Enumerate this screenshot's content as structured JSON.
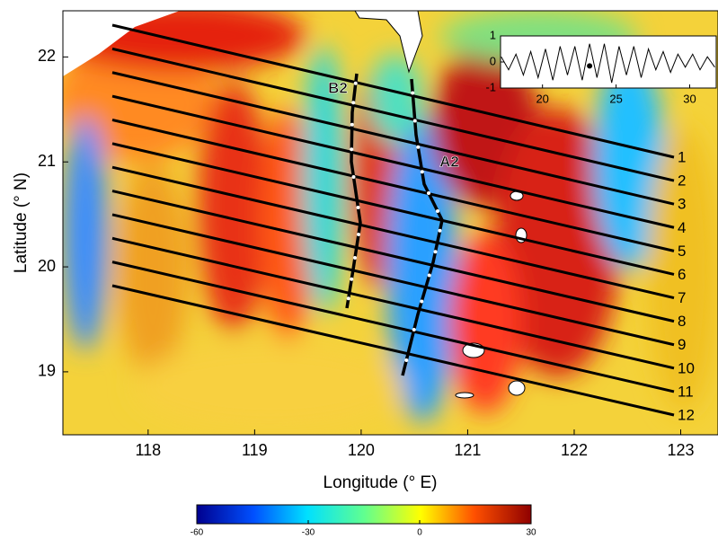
{
  "chart_data": {
    "type": "map",
    "xlabel": "Longitude (° E)",
    "ylabel": "Latitude (° N)",
    "xlim": [
      117.2,
      123.35
    ],
    "ylim": [
      18.4,
      22.44
    ],
    "xticks": [
      118,
      119,
      120,
      121,
      122,
      123
    ],
    "yticks": [
      19,
      20,
      21,
      22
    ],
    "transect_labels": [
      "1",
      "2",
      "3",
      "4",
      "5",
      "6",
      "7",
      "8",
      "9",
      "10",
      "11",
      "12"
    ],
    "path_labels": [
      "B2",
      "A2"
    ],
    "colorbar": {
      "lim": [
        -60,
        30
      ],
      "ticks": [
        -60,
        -30,
        0,
        30
      ]
    },
    "inset": {
      "type": "line",
      "xlim": [
        17.15,
        31.8
      ],
      "ylim": [
        -1,
        1
      ],
      "xticks": [
        20,
        25,
        30
      ],
      "yticks": [
        -1,
        0,
        1
      ],
      "x": [
        17.2,
        17.7,
        18.2,
        18.7,
        19.2,
        19.7,
        20.2,
        20.7,
        21.2,
        21.7,
        22.2,
        22.7,
        23.2,
        23.7,
        24.2,
        24.7,
        25.2,
        25.7,
        26.2,
        26.7,
        27.2,
        27.7,
        28.2,
        28.7,
        29.2,
        29.7,
        30.2,
        30.7,
        31.2,
        31.7
      ],
      "values": [
        0.2,
        -0.3,
        0.3,
        -0.5,
        0.4,
        -0.6,
        0.5,
        -0.7,
        0.6,
        -0.5,
        0.6,
        -0.7,
        0.7,
        -0.6,
        0.7,
        -0.8,
        0.6,
        -0.5,
        0.6,
        -0.6,
        0.5,
        -0.3,
        0.4,
        -0.4,
        0.3,
        -0.2,
        0.3,
        -0.3,
        0.2,
        -0.2
      ],
      "marker": {
        "x": 23.2,
        "y": -0.15
      }
    }
  }
}
